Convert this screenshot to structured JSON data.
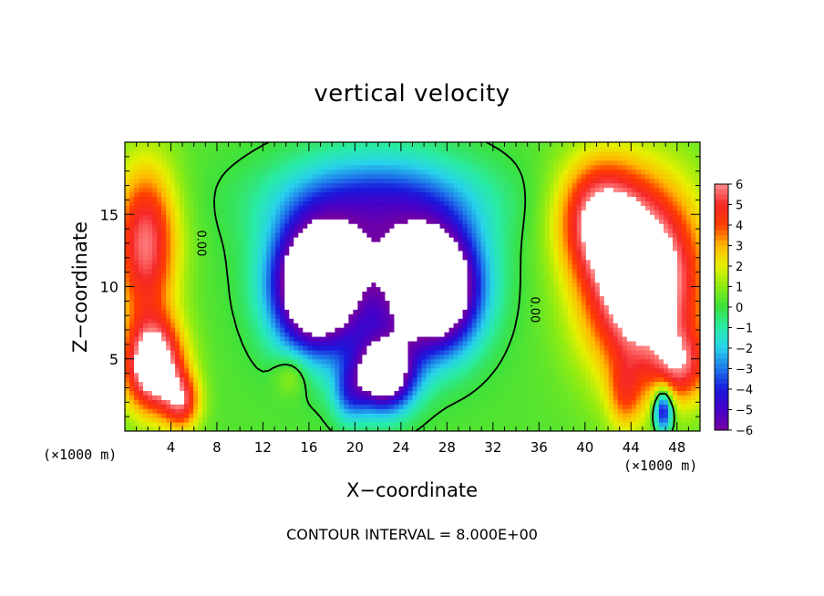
{
  "chart_data": {
    "type": "heatmap",
    "title": "vertical velocity",
    "xlabel": "X−coordinate",
    "ylabel": "Z−coordinate",
    "x_unit": "(×1000 m)",
    "x_unit_right": "(×1000 m)",
    "footer": "CONTOUR INTERVAL = 8.000E+00",
    "xlim": [
      0,
      50
    ],
    "ylim": [
      0,
      20
    ],
    "x_ticks": [
      4,
      8,
      12,
      16,
      20,
      24,
      28,
      32,
      36,
      40,
      44,
      48
    ],
    "y_ticks": [
      5,
      10,
      15
    ],
    "colorbar": {
      "min": -6,
      "max": 6,
      "ticks": [
        "6",
        "5",
        "4",
        "3",
        "2",
        "1",
        "0",
        "−1",
        "−2",
        "−3",
        "−4",
        "−5",
        "−6"
      ],
      "tick_values": [
        6,
        5,
        4,
        3,
        2,
        1,
        0,
        -1,
        -2,
        -3,
        -4,
        -5,
        -6
      ],
      "saturation_color_above": "#ffffff",
      "saturation_color_below": "#ffffff"
    },
    "contour_labels": [
      {
        "text": "0.00",
        "x": 6.3,
        "z": 13.0
      },
      {
        "text": "0.00",
        "x": 35.3,
        "z": 8.4
      }
    ],
    "features": [
      {
        "kind": "updraft",
        "x": 2.5,
        "z": 4.5,
        "strength": 7
      },
      {
        "kind": "updraft",
        "x": 2.0,
        "z": 12.0,
        "strength": 5.5
      },
      {
        "kind": "updraft",
        "x": 44.5,
        "z": 10.0,
        "strength": 8
      },
      {
        "kind": "updraft",
        "x": 48.0,
        "z": 5.0,
        "strength": 4
      },
      {
        "kind": "downdraft",
        "x": 17.0,
        "z": 10.0,
        "strength": -9
      },
      {
        "kind": "downdraft",
        "x": 27.0,
        "z": 9.5,
        "strength": -9
      },
      {
        "kind": "downdraft",
        "x": 22.5,
        "z": 4.0,
        "strength": -8
      },
      {
        "kind": "downdraft",
        "x": 46.5,
        "z": 1.5,
        "strength": -5
      }
    ]
  }
}
